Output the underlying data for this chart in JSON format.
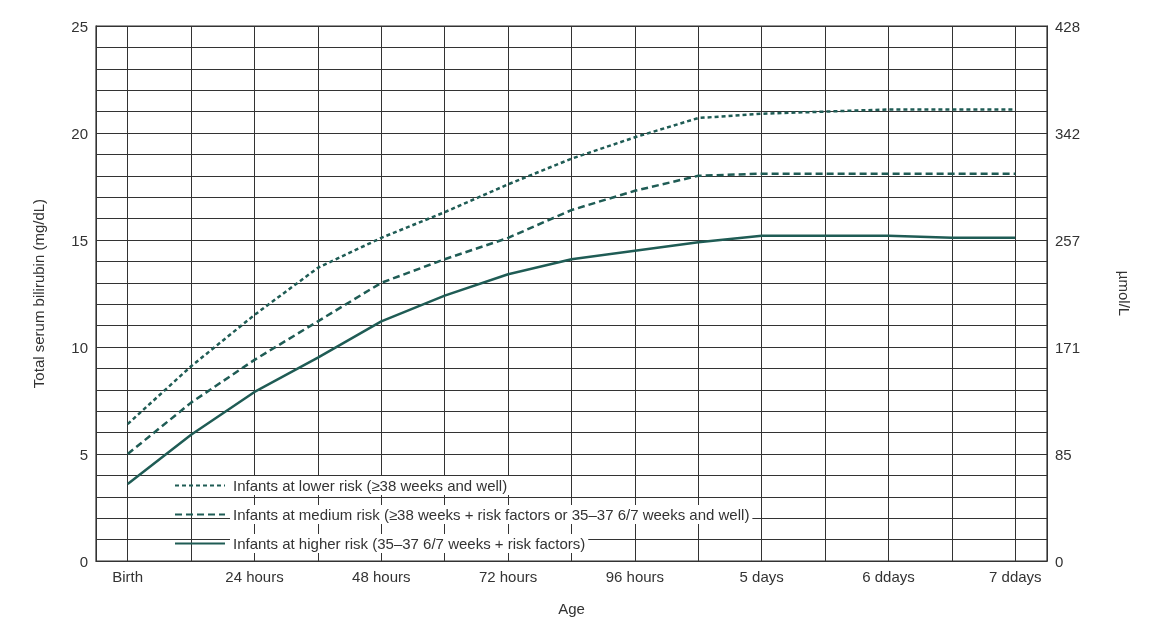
{
  "chart_data": {
    "type": "line",
    "xlabel": "Age",
    "ylabel": "Total serum bilirubin (mg/dL)",
    "y2label": "µmol/L",
    "categories": [
      "Birth",
      null,
      "24 hours",
      null,
      "48 hours",
      null,
      "72 hours",
      null,
      "96 hours",
      null,
      "5 days",
      null,
      "6 ddays",
      null,
      "7 ddays"
    ],
    "ylim": [
      0,
      25
    ],
    "yticks": [
      0,
      {
        "value": 1,
        "label": null
      },
      {
        "value": 2,
        "label": null
      },
      {
        "value": 3,
        "label": null
      },
      {
        "value": 4,
        "label": null
      },
      5,
      {
        "value": 6,
        "label": null
      },
      {
        "value": 7,
        "label": null
      },
      {
        "value": 8,
        "label": null
      },
      {
        "value": 9,
        "label": null
      },
      10,
      {
        "value": 11,
        "label": null
      },
      {
        "value": 12,
        "label": null
      },
      {
        "value": 13,
        "label": null
      },
      {
        "value": 14,
        "label": null
      },
      15,
      {
        "value": 16,
        "label": null
      },
      {
        "value": 17,
        "label": null
      },
      {
        "value": 18,
        "label": null
      },
      {
        "value": 19,
        "label": null
      },
      20,
      {
        "value": 21,
        "label": null
      },
      {
        "value": 22,
        "label": null
      },
      {
        "value": 23,
        "label": null
      },
      {
        "value": 24,
        "label": null
      },
      25
    ],
    "y2lim": [
      0,
      427.5
    ],
    "y2ticks": [
      0,
      {
        "value": 85.5,
        "label": "85"
      },
      171,
      {
        "value": 256.5,
        "label": "257"
      },
      342,
      {
        "value": 427.5,
        "label": "428"
      }
    ],
    "grid": true,
    "legend": "bottom left",
    "marker": "none",
    "series": [
      {
        "name": "Infants at lower risk (≥38 weeks and well)",
        "color": "#1f5c55",
        "line_style": "dashed",
        "values": [
          6.4,
          9.1,
          11.5,
          13.7,
          15.1,
          16.3,
          17.6,
          18.8,
          19.8,
          20.7,
          20.9,
          21,
          21.1,
          21.1,
          21.1
        ]
      },
      {
        "name": "Infants at medium risk (≥38 weeks + risk factors or 35–37 6/7 weeks and well)",
        "color": "#1f5c55",
        "line_style": "dashed",
        "values": [
          5,
          7.4,
          9.4,
          11.2,
          13,
          14.1,
          15.1,
          16.4,
          17.3,
          18,
          18.1,
          18.1,
          18.1,
          18.1,
          18.1
        ]
      },
      {
        "name": "Infants at higher risk (35–37 6/7 weeks + risk factors)",
        "color": "#1f5c55",
        "line_style": "solid",
        "values": [
          3.6,
          5.9,
          7.9,
          9.5,
          11.2,
          12.4,
          13.4,
          14.1,
          14.5,
          14.9,
          15.2,
          15.2,
          15.2,
          15.1,
          15.1
        ]
      }
    ]
  }
}
